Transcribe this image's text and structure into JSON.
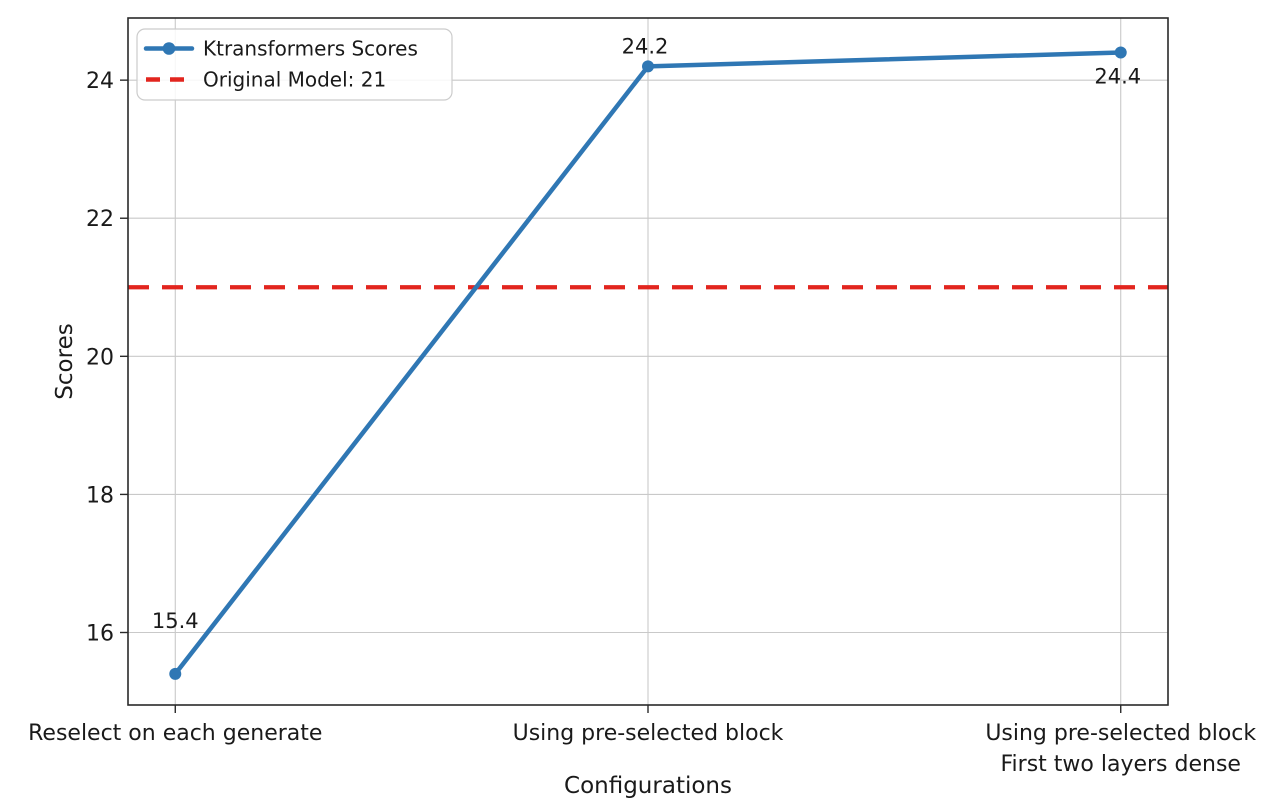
{
  "figure": {
    "background": "#ffffff"
  },
  "chart_data": {
    "type": "line",
    "title": "",
    "xlabel": "Configurations",
    "ylabel": "Scores",
    "categories": [
      "Reselect on each generate",
      "Using pre-selected block",
      "Using pre-selected block\nFirst two layers dense"
    ],
    "series": [
      {
        "name": "Ktransformers Scores",
        "values": [
          15.4,
          24.2,
          24.4
        ],
        "color": "#2f77b4",
        "marker": "circle"
      }
    ],
    "point_labels": [
      "15.4",
      "24.2",
      "24.4"
    ],
    "reference_line": {
      "label": "Original Model: 21",
      "value": 21,
      "color": "#e2251e",
      "style": "dashed"
    },
    "yticks": [
      16,
      18,
      20,
      22,
      24
    ],
    "ylim": [
      14.95,
      24.9
    ],
    "grid": true,
    "legend_position": "upper-left",
    "colors": {
      "text": "#1a1a1a",
      "grid": "#c9c9c9",
      "frame": "#2a2a2a",
      "legend_border": "#cccccc"
    }
  }
}
